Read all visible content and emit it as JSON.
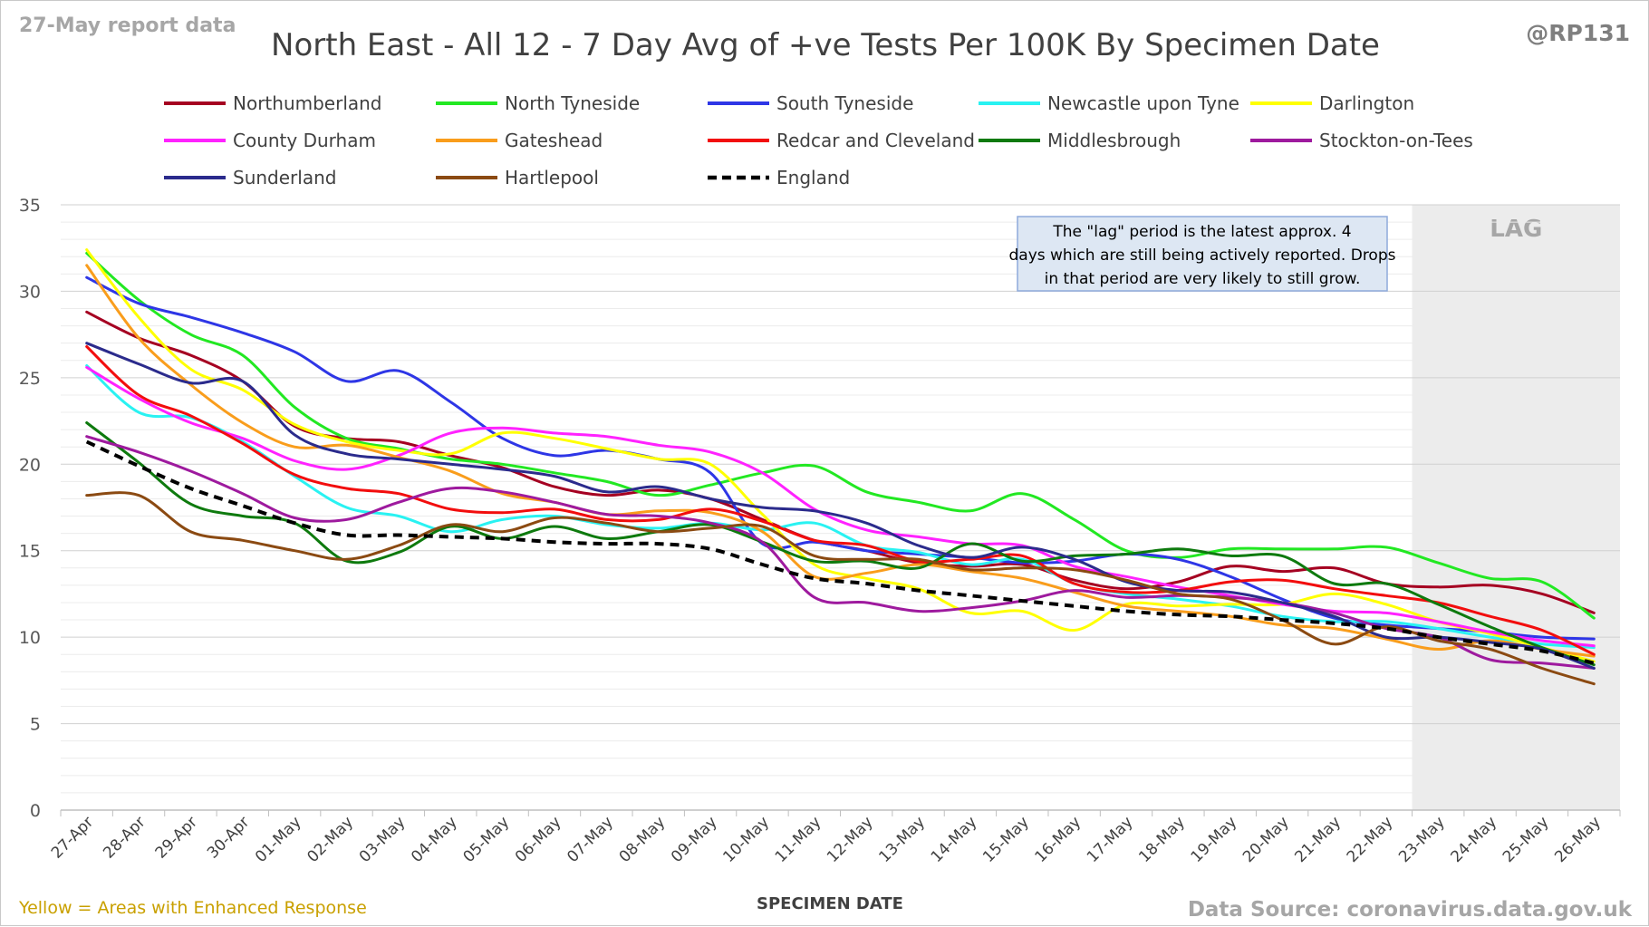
{
  "header": {
    "report_label": "27-May report data",
    "handle": "@RP131"
  },
  "footer": {
    "enhanced_note": "Yellow = Areas with Enhanced Response",
    "source": "Data Source: coronavirus.data.gov.uk"
  },
  "colors": {
    "note_text": "#c9a000",
    "lag_band": "#ececec",
    "grid": "#d9d9d9",
    "annotation_bg": "#dde7f3",
    "annotation_border": "#8eaadb"
  },
  "chart_data": {
    "type": "line",
    "title": "North East - All 12 - 7 Day Avg of +ve Tests Per 100K By Specimen Date",
    "xlabel": "SPECIMEN DATE",
    "ylabel": "",
    "ylim": [
      0,
      35
    ],
    "yticks": [
      0,
      5,
      10,
      15,
      20,
      25,
      30,
      35
    ],
    "grid": true,
    "legend_position": "top",
    "lag_label": "LAG",
    "lag_start_index": 26,
    "annotation": "The \"lag\" period is the latest approx. 4 days which are still being actively reported. Drops in that period are very likely to still grow.",
    "x": [
      "27-Apr",
      "28-Apr",
      "29-Apr",
      "30-Apr",
      "01-May",
      "02-May",
      "03-May",
      "04-May",
      "05-May",
      "06-May",
      "07-May",
      "08-May",
      "09-May",
      "10-May",
      "11-May",
      "12-May",
      "13-May",
      "14-May",
      "15-May",
      "16-May",
      "17-May",
      "18-May",
      "19-May",
      "20-May",
      "21-May",
      "22-May",
      "23-May",
      "24-May",
      "25-May",
      "26-May"
    ],
    "series": [
      {
        "name": "Northumberland",
        "color": "#a50021",
        "dash": false,
        "values": [
          28.8,
          27.3,
          26.3,
          24.8,
          22.2,
          21.5,
          21.3,
          20.5,
          19.8,
          18.7,
          18.2,
          18.5,
          18.0,
          16.8,
          15.6,
          15.0,
          14.3,
          14.1,
          14.2,
          13.3,
          12.8,
          13.2,
          14.1,
          13.8,
          14.0,
          13.1,
          12.9,
          13.0,
          12.5,
          11.4
        ]
      },
      {
        "name": "North Tyneside",
        "color": "#22e822",
        "dash": false,
        "values": [
          32.2,
          29.5,
          27.5,
          26.3,
          23.3,
          21.5,
          20.9,
          20.3,
          20.0,
          19.5,
          19.0,
          18.2,
          18.8,
          19.5,
          19.9,
          18.4,
          17.8,
          17.3,
          18.3,
          16.8,
          15.0,
          14.6,
          15.1,
          15.1,
          15.1,
          15.2,
          14.3,
          13.4,
          13.2,
          11.1
        ]
      },
      {
        "name": "South Tyneside",
        "color": "#2e36e6",
        "dash": false,
        "values": [
          30.8,
          29.3,
          28.5,
          27.6,
          26.5,
          24.8,
          25.4,
          23.6,
          21.5,
          20.5,
          20.8,
          20.3,
          19.5,
          15.4,
          15.5,
          15.0,
          14.8,
          14.6,
          14.3,
          14.4,
          14.8,
          14.5,
          13.5,
          12.2,
          11.1,
          10.7,
          10.5,
          10.3,
          10.0,
          9.9
        ]
      },
      {
        "name": "Newcastle upon Tyne",
        "color": "#29f2f2",
        "dash": false,
        "values": [
          25.7,
          23.0,
          22.7,
          21.3,
          19.3,
          17.5,
          17.0,
          16.1,
          16.8,
          17.0,
          16.5,
          16.3,
          16.6,
          16.2,
          16.6,
          15.3,
          14.9,
          14.2,
          14.5,
          13.1,
          12.5,
          12.2,
          11.8,
          11.2,
          10.9,
          10.9,
          10.5,
          10.0,
          9.6,
          9.4
        ]
      },
      {
        "name": "Darlington",
        "color": "#ffff00",
        "dash": false,
        "values": [
          32.4,
          28.5,
          25.5,
          24.3,
          22.3,
          21.3,
          20.8,
          20.6,
          21.8,
          21.5,
          20.9,
          20.3,
          20.0,
          17.1,
          14.2,
          13.4,
          12.8,
          11.4,
          11.5,
          10.4,
          11.9,
          11.8,
          11.9,
          11.9,
          12.5,
          11.9,
          10.9,
          10.2,
          9.4,
          8.6
        ]
      },
      {
        "name": "County Durham",
        "color": "#ff22ff",
        "dash": false,
        "values": [
          25.6,
          23.8,
          22.4,
          21.5,
          20.2,
          19.7,
          20.5,
          21.8,
          22.1,
          21.8,
          21.6,
          21.1,
          20.7,
          19.5,
          17.4,
          16.2,
          15.8,
          15.4,
          15.3,
          14.1,
          13.5,
          12.9,
          12.4,
          11.9,
          11.5,
          11.4,
          10.9,
          10.3,
          9.8,
          9.5
        ]
      },
      {
        "name": "Gateshead",
        "color": "#f99d1c",
        "dash": false,
        "values": [
          31.5,
          27.3,
          24.6,
          22.4,
          21.0,
          21.1,
          20.4,
          19.6,
          18.3,
          17.8,
          17.1,
          17.3,
          17.2,
          16.1,
          13.5,
          13.7,
          14.2,
          13.8,
          13.4,
          12.6,
          11.8,
          11.5,
          11.2,
          10.7,
          10.5,
          9.9,
          9.3,
          9.8,
          9.3,
          8.9
        ]
      },
      {
        "name": "Redcar and Cleveland",
        "color": "#f20d0d",
        "dash": false,
        "values": [
          26.8,
          24.0,
          22.8,
          21.2,
          19.4,
          18.6,
          18.3,
          17.4,
          17.2,
          17.4,
          16.8,
          16.8,
          17.4,
          16.7,
          15.6,
          15.3,
          14.4,
          14.5,
          14.7,
          13.1,
          12.6,
          12.7,
          13.2,
          13.3,
          12.8,
          12.4,
          12.0,
          11.2,
          10.4,
          9.0
        ]
      },
      {
        "name": "Middlesbrough",
        "color": "#0e7a0e",
        "dash": false,
        "values": [
          22.4,
          20.1,
          17.7,
          17.0,
          16.6,
          14.4,
          14.9,
          16.4,
          15.7,
          16.4,
          15.7,
          16.1,
          16.5,
          15.5,
          14.4,
          14.4,
          14.0,
          15.4,
          14.4,
          14.7,
          14.8,
          15.1,
          14.7,
          14.7,
          13.1,
          13.1,
          11.9,
          10.6,
          9.4,
          8.4
        ]
      },
      {
        "name": "Stockton-on-Tees",
        "color": "#9e1a9e",
        "dash": false,
        "values": [
          21.6,
          20.7,
          19.6,
          18.3,
          16.9,
          16.8,
          17.8,
          18.6,
          18.4,
          17.8,
          17.1,
          17.0,
          16.6,
          15.5,
          12.3,
          12.0,
          11.5,
          11.7,
          12.1,
          12.7,
          12.3,
          12.4,
          12.3,
          12.0,
          11.4,
          10.5,
          10.0,
          8.7,
          8.5,
          8.2
        ]
      },
      {
        "name": "Sunderland",
        "color": "#2b2b8c",
        "dash": false,
        "values": [
          27.0,
          25.8,
          24.7,
          24.8,
          21.7,
          20.6,
          20.3,
          20.0,
          19.7,
          19.3,
          18.4,
          18.7,
          18.0,
          17.5,
          17.3,
          16.6,
          15.3,
          14.6,
          15.2,
          14.5,
          13.2,
          12.7,
          12.6,
          12.0,
          11.2,
          10.0,
          10.0,
          9.7,
          9.3,
          8.2
        ]
      },
      {
        "name": "Hartlepool",
        "color": "#8b4a12",
        "dash": false,
        "values": [
          18.2,
          18.2,
          16.1,
          15.6,
          15.0,
          14.5,
          15.3,
          16.5,
          16.1,
          16.9,
          16.6,
          16.1,
          16.3,
          16.4,
          14.7,
          14.5,
          14.5,
          13.9,
          14.0,
          13.9,
          13.3,
          12.5,
          12.2,
          11.0,
          9.6,
          10.6,
          9.8,
          9.3,
          8.2,
          7.3
        ]
      },
      {
        "name": "England",
        "color": "#000000",
        "dash": true,
        "values": [
          21.3,
          19.9,
          18.6,
          17.6,
          16.6,
          15.9,
          15.9,
          15.8,
          15.7,
          15.5,
          15.4,
          15.4,
          15.1,
          14.2,
          13.4,
          13.1,
          12.7,
          12.4,
          12.1,
          11.8,
          11.5,
          11.3,
          11.2,
          11.0,
          10.8,
          10.5,
          10.0,
          9.6,
          9.2,
          8.5
        ]
      }
    ]
  }
}
